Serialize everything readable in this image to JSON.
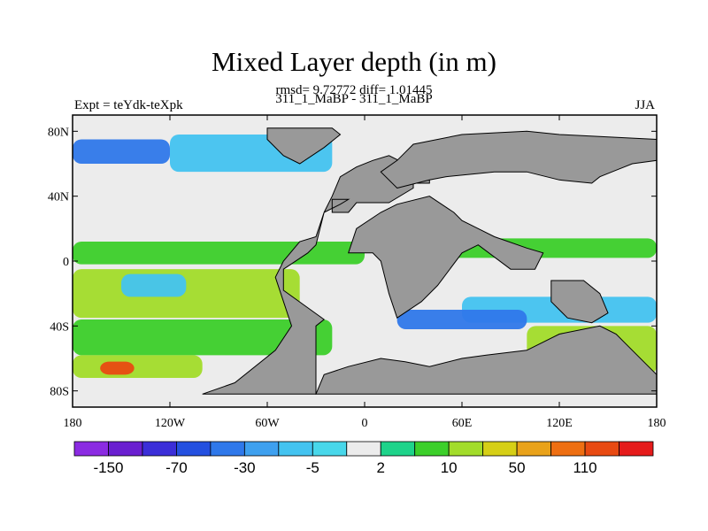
{
  "chart_data": {
    "type": "heatmap",
    "title": "Mixed Layer depth (in m)",
    "stats_line": "rmsd= 9.72772 diff= 1.01445",
    "subtitle": "311_1_MaBP - 311_1_MaBP",
    "left_label": "Expt = teYdk-teXpk",
    "right_label": "JJA",
    "x_ticks": [
      {
        "lon": -180,
        "label": "180"
      },
      {
        "lon": -120,
        "label": "120W"
      },
      {
        "lon": -60,
        "label": "60W"
      },
      {
        "lon": 0,
        "label": "0"
      },
      {
        "lon": 60,
        "label": "60E"
      },
      {
        "lon": 120,
        "label": "120E"
      },
      {
        "lon": 180,
        "label": "180"
      }
    ],
    "y_ticks": [
      {
        "lat": 80,
        "label": "80N"
      },
      {
        "lat": 40,
        "label": "40N"
      },
      {
        "lat": 0,
        "label": "0"
      },
      {
        "lat": -40,
        "label": "40S"
      },
      {
        "lat": -80,
        "label": "80S"
      }
    ],
    "xlim": [
      -180,
      180
    ],
    "ylim": [
      -90,
      90
    ],
    "colorbar": {
      "colors": [
        "#8b2be2",
        "#6a1fd0",
        "#3b2ed8",
        "#2450e0",
        "#2f78ea",
        "#3ea0ef",
        "#43c3f0",
        "#48d7ea",
        "#ececec",
        "#1ed38a",
        "#3ccf2a",
        "#a2dc2a",
        "#d6cf16",
        "#e9a21a",
        "#ee6f12",
        "#e84a12",
        "#e51b1b"
      ],
      "labels": [
        "-150",
        "-70",
        "-30",
        "-5",
        "2",
        "10",
        "50",
        "110"
      ]
    },
    "land_color": "#999999",
    "ocean_fields": [
      {
        "lon1": -180,
        "lon2": -120,
        "lat1": 60,
        "lat2": 75,
        "color": "#2f78ea"
      },
      {
        "lon1": -120,
        "lon2": -20,
        "lat1": 55,
        "lat2": 78,
        "color": "#43c3f0"
      },
      {
        "lon1": -180,
        "lon2": 180,
        "lat1": 26,
        "lat2": 46,
        "color": "#ececec"
      },
      {
        "lon1": -180,
        "lon2": 0,
        "lat1": -2,
        "lat2": 12,
        "color": "#3ccf2a"
      },
      {
        "lon1": -180,
        "lon2": -40,
        "lat1": -35,
        "lat2": -5,
        "color": "#a2dc2a"
      },
      {
        "lon1": -150,
        "lon2": -110,
        "lat1": -22,
        "lat2": -8,
        "color": "#43c3f0"
      },
      {
        "lon1": -180,
        "lon2": -20,
        "lat1": -58,
        "lat2": -36,
        "color": "#3ccf2a"
      },
      {
        "lon1": -180,
        "lon2": -100,
        "lat1": -72,
        "lat2": -58,
        "color": "#a2dc2a"
      },
      {
        "lon1": -163,
        "lon2": -142,
        "lat1": -70,
        "lat2": -62,
        "color": "#e84a12"
      },
      {
        "lon1": 40,
        "lon2": 180,
        "lat1": 2,
        "lat2": 14,
        "color": "#3ccf2a"
      },
      {
        "lon1": 60,
        "lon2": 180,
        "lat1": -38,
        "lat2": -22,
        "color": "#43c3f0"
      },
      {
        "lon1": 100,
        "lon2": 180,
        "lat1": -70,
        "lat2": -40,
        "color": "#a2dc2a"
      },
      {
        "lon1": 20,
        "lon2": 100,
        "lat1": -42,
        "lat2": -30,
        "color": "#2f78ea"
      }
    ]
  }
}
